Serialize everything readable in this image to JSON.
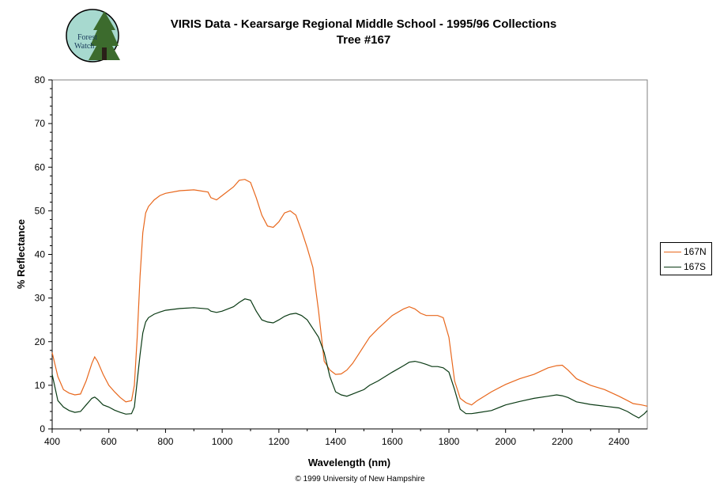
{
  "header": {
    "logo_text_line1": "Forest",
    "logo_text_line2": "Watch",
    "title": "VIRIS Data - Kearsarge Regional Middle School - 1995/96 Collections",
    "subtitle": "Tree #167"
  },
  "footer": {
    "copyright": "© 1999 University of New Hampshire"
  },
  "colors": {
    "series_167N": "#e8671c",
    "series_167S": "#0a3a14",
    "axis": "#000000"
  },
  "chart_data": {
    "type": "line",
    "xlabel": "Wavelength (nm)",
    "ylabel": "% Reflectance",
    "xlim": [
      400,
      2500
    ],
    "ylim": [
      0,
      80
    ],
    "xticks": [
      400,
      600,
      800,
      1000,
      1200,
      1400,
      1600,
      1800,
      2000,
      2200,
      2400
    ],
    "yticks": [
      0,
      10,
      20,
      30,
      40,
      50,
      60,
      70,
      80
    ],
    "grid": false,
    "legend_position": "right",
    "series": [
      {
        "name": "167N",
        "x": [
          400,
          420,
          440,
          460,
          480,
          500,
          520,
          540,
          550,
          560,
          580,
          600,
          620,
          640,
          660,
          680,
          690,
          700,
          710,
          720,
          730,
          740,
          760,
          780,
          800,
          850,
          900,
          950,
          960,
          980,
          1000,
          1040,
          1060,
          1080,
          1100,
          1120,
          1140,
          1160,
          1180,
          1200,
          1220,
          1240,
          1260,
          1280,
          1300,
          1320,
          1340,
          1360,
          1380,
          1400,
          1420,
          1440,
          1460,
          1480,
          1500,
          1520,
          1550,
          1600,
          1640,
          1660,
          1680,
          1700,
          1720,
          1740,
          1760,
          1780,
          1800,
          1820,
          1840,
          1860,
          1880,
          1900,
          1950,
          2000,
          2050,
          2100,
          2150,
          2180,
          2200,
          2220,
          2250,
          2300,
          2350,
          2400,
          2430,
          2450,
          2480,
          2500
        ],
        "y": [
          17.5,
          12,
          9,
          8.2,
          7.8,
          8,
          11,
          15,
          16.5,
          15.5,
          12.5,
          10,
          8.5,
          7.2,
          6.2,
          6.5,
          10,
          21,
          35,
          45,
          49.5,
          51,
          52.5,
          53.5,
          54,
          54.6,
          54.8,
          54.3,
          53,
          52.5,
          53.5,
          55.5,
          57,
          57.2,
          56.5,
          53,
          49,
          46.5,
          46.2,
          47.5,
          49.5,
          50,
          49,
          45.5,
          41.5,
          37,
          27,
          15.5,
          13.5,
          12.5,
          12.6,
          13.5,
          15,
          17,
          19,
          21,
          23,
          26,
          27.5,
          28,
          27.5,
          26.5,
          26,
          26,
          26,
          25.5,
          21,
          11,
          7,
          6,
          5.5,
          6.5,
          8.5,
          10.2,
          11.5,
          12.5,
          14,
          14.5,
          14.6,
          13.5,
          11.5,
          10,
          9,
          7.5,
          6.5,
          5.8,
          5.5,
          5.2
        ]
      },
      {
        "name": "167S",
        "x": [
          400,
          420,
          440,
          460,
          480,
          500,
          520,
          540,
          550,
          560,
          580,
          600,
          620,
          640,
          660,
          680,
          690,
          700,
          710,
          720,
          730,
          740,
          760,
          780,
          800,
          850,
          900,
          950,
          960,
          980,
          1000,
          1040,
          1060,
          1080,
          1100,
          1120,
          1140,
          1160,
          1180,
          1200,
          1220,
          1240,
          1260,
          1280,
          1300,
          1320,
          1340,
          1360,
          1380,
          1400,
          1420,
          1440,
          1460,
          1480,
          1500,
          1520,
          1550,
          1600,
          1640,
          1660,
          1680,
          1700,
          1720,
          1740,
          1760,
          1780,
          1800,
          1820,
          1840,
          1860,
          1880,
          1900,
          1950,
          2000,
          2050,
          2100,
          2150,
          2180,
          2200,
          2220,
          2250,
          2300,
          2350,
          2400,
          2430,
          2450,
          2470,
          2490,
          2500
        ],
        "y": [
          12.5,
          6.5,
          5,
          4.2,
          3.8,
          4,
          5.5,
          7,
          7.3,
          6.8,
          5.5,
          5,
          4.3,
          3.8,
          3.4,
          3.5,
          5,
          11,
          17,
          22,
          24.5,
          25.5,
          26.3,
          26.8,
          27.2,
          27.6,
          27.8,
          27.5,
          27,
          26.7,
          27,
          28,
          29,
          29.8,
          29.5,
          27,
          25,
          24.5,
          24.3,
          25,
          25.8,
          26.3,
          26.5,
          26,
          25,
          23,
          21,
          17.5,
          12,
          8.5,
          7.8,
          7.5,
          8,
          8.5,
          9,
          10,
          11,
          13,
          14.5,
          15.3,
          15.5,
          15.2,
          14.8,
          14.3,
          14.3,
          14,
          13,
          9,
          4.5,
          3.5,
          3.5,
          3.7,
          4.2,
          5.5,
          6.3,
          7,
          7.5,
          7.8,
          7.6,
          7.2,
          6.2,
          5.6,
          5.2,
          4.8,
          4,
          3.2,
          2.5,
          3.5,
          4.2
        ]
      }
    ]
  }
}
